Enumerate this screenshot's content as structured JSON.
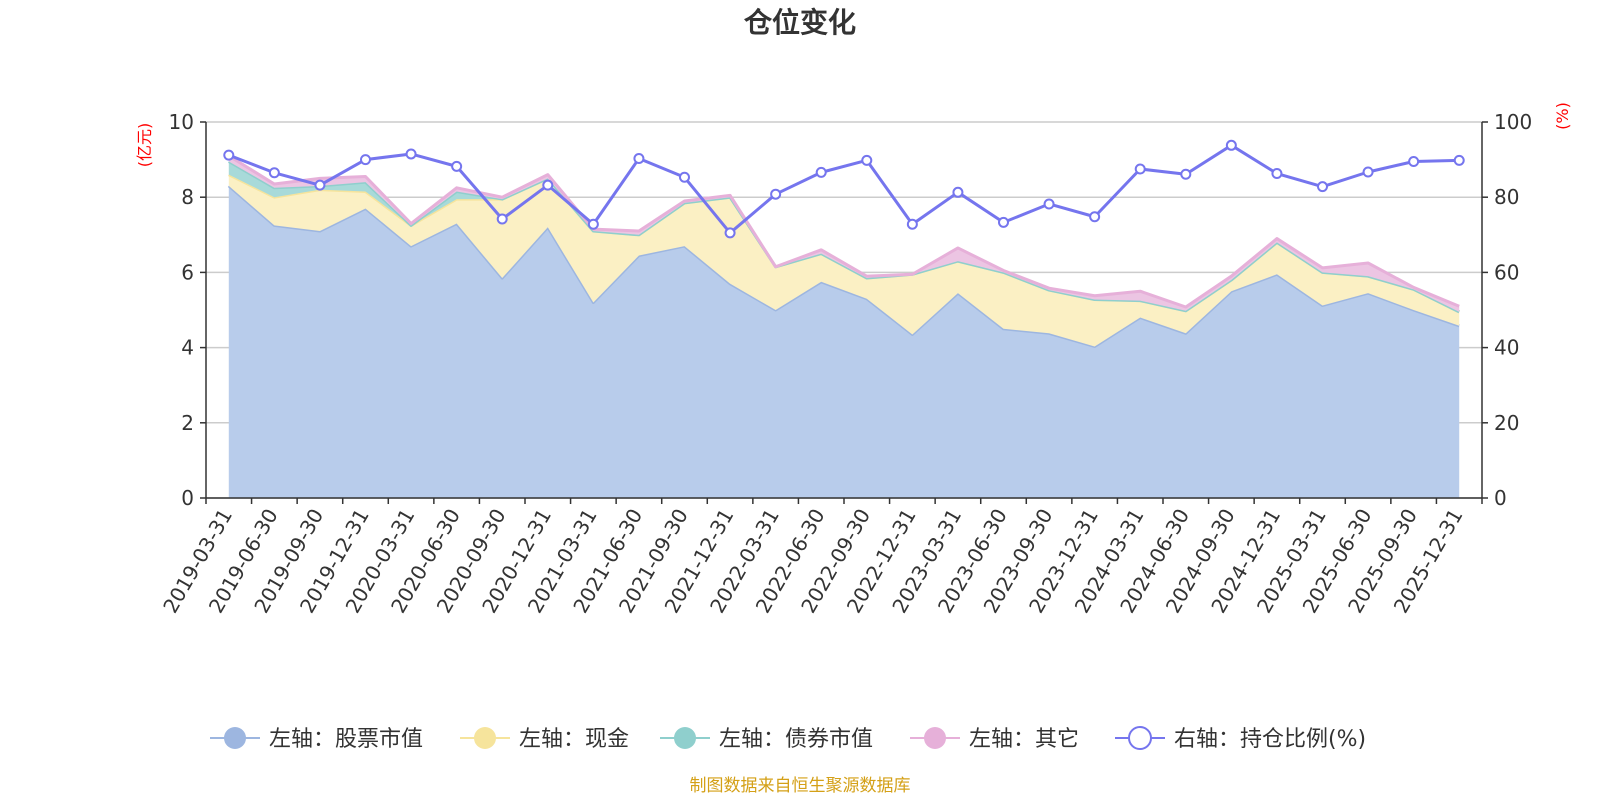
{
  "chart_data": {
    "type": "area",
    "title": "仓位变化",
    "source": "制图数据来自恒生聚源数据库",
    "left_axis": {
      "unit": "(亿元)",
      "unit_color": "#ff0000",
      "ticks": [
        "0",
        "2",
        "4",
        "6",
        "8",
        "10"
      ],
      "ylim": [
        0,
        10
      ]
    },
    "right_axis": {
      "unit": "(%)",
      "unit_color": "#ff0000",
      "ticks": [
        "0",
        "20",
        "40",
        "60",
        "80",
        "100"
      ],
      "ylim": [
        0,
        100
      ]
    },
    "categories": [
      "2019-03-31",
      "2019-06-30",
      "2019-09-30",
      "2019-12-31",
      "2020-03-31",
      "2020-06-30",
      "2020-09-30",
      "2020-12-31",
      "2021-03-31",
      "2021-06-30",
      "2021-09-30",
      "2021-12-31",
      "2022-03-31",
      "2022-06-30",
      "2022-09-30",
      "2022-12-31",
      "2023-03-31",
      "2023-06-30",
      "2023-09-30",
      "2023-12-31",
      "2024-03-31",
      "2024-06-30",
      "2024-09-30",
      "2024-12-31",
      "2025-03-31",
      "2025-06-30",
      "2025-09-30",
      "2025-12-31"
    ],
    "stacked_series": [
      {
        "name": "左轴：股票市值",
        "color": "#b8cceb",
        "line_color": "#9db6e0",
        "values": [
          8.3,
          7.25,
          7.1,
          7.7,
          6.7,
          7.3,
          5.85,
          7.2,
          5.2,
          6.45,
          6.7,
          5.7,
          5.0,
          5.75,
          5.3,
          4.35,
          5.45,
          4.5,
          4.38,
          4.03,
          4.8,
          4.38,
          5.5,
          5.95,
          5.12,
          5.45,
          5.0,
          4.58
        ]
      },
      {
        "name": "左轴：现金",
        "color": "#fbf0c4",
        "line_color": "#f6e49c",
        "values": [
          0.3,
          0.75,
          1.1,
          0.45,
          0.55,
          0.65,
          2.1,
          1.3,
          1.9,
          0.55,
          1.15,
          2.3,
          1.15,
          0.75,
          0.55,
          1.6,
          0.85,
          1.5,
          1.15,
          1.25,
          0.45,
          0.6,
          0.3,
          0.85,
          0.88,
          0.45,
          0.55,
          0.37
        ]
      },
      {
        "name": "左轴：债券市值",
        "color": "#a8dad9",
        "line_color": "#8fcfcd",
        "values": [
          0.35,
          0.25,
          0.1,
          0.25,
          0,
          0.2,
          0,
          0,
          0,
          0,
          0,
          0,
          0,
          0,
          0,
          0,
          0,
          0,
          0,
          0,
          0,
          0,
          0,
          0,
          0,
          0,
          0,
          0
        ]
      },
      {
        "name": "左轴：其它",
        "color": "#ecc5e3",
        "line_color": "#e6b0d9",
        "values": [
          0.15,
          0.1,
          0.2,
          0.15,
          0.05,
          0.1,
          0.05,
          0.1,
          0.05,
          0.1,
          0.05,
          0.05,
          0.0,
          0.1,
          0.05,
          0.0,
          0.35,
          0.05,
          0.05,
          0.1,
          0.25,
          0.1,
          0.1,
          0.1,
          0.12,
          0.35,
          0.05,
          0.15
        ]
      }
    ],
    "line_series": {
      "name": "右轴：持仓比例(%)",
      "color": "#7575ee",
      "values": [
        91.2,
        86.5,
        83.2,
        90.0,
        91.5,
        88.2,
        74.2,
        83.2,
        72.8,
        90.3,
        85.3,
        70.5,
        80.8,
        86.6,
        89.8,
        72.8,
        81.3,
        73.3,
        78.2,
        74.8,
        87.5,
        86.1,
        93.8,
        86.3,
        82.8,
        86.7,
        89.5,
        89.8
      ]
    },
    "legend": [
      {
        "label": "左轴：股票市值",
        "color": "#9db6e0",
        "style": "filled"
      },
      {
        "label": "左轴：现金",
        "color": "#f6e49c",
        "style": "filled"
      },
      {
        "label": "左轴：债券市值",
        "color": "#8fcfcd",
        "style": "filled"
      },
      {
        "label": "左轴：其它",
        "color": "#e6b0d9",
        "style": "filled"
      },
      {
        "label": "右轴：持仓比例(%)",
        "color": "#7575ee",
        "style": "hollow"
      }
    ]
  }
}
